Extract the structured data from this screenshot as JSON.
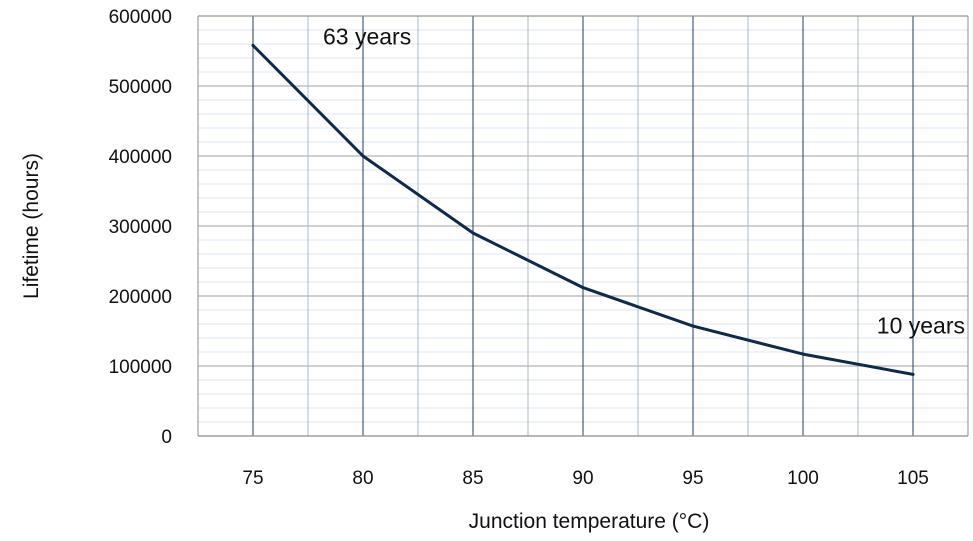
{
  "chart_data": {
    "type": "line",
    "title": "",
    "xlabel": "Junction temperature (°C)",
    "ylabel": "Lifetime  (hours)",
    "x": [
      75,
      80,
      85,
      90,
      95,
      100,
      105
    ],
    "xticks": [
      "75",
      "80",
      "85",
      "90",
      "95",
      "100",
      "105"
    ],
    "xlim": [
      72.5,
      107.5
    ],
    "yticks": [
      "0",
      "100000",
      "200000",
      "300000",
      "400000",
      "500000",
      "600000"
    ],
    "ylim": [
      0,
      600000
    ],
    "series": [
      {
        "values": [
          558000,
          400000,
          290000,
          212000,
          157000,
          117000,
          88000
        ]
      }
    ],
    "annotations": [
      {
        "text": "63 years",
        "x": 75,
        "y": 558000
      },
      {
        "text": "10 years",
        "x": 105,
        "y": 88000
      }
    ],
    "grid": true,
    "legend": "none",
    "colors": {
      "line": "#0d2a4d",
      "major_vgrid": "#1f3f5f",
      "minor_vgrid": "#a8b8cc",
      "major_hgrid": "#b5b5b5",
      "minor_hgrid": "#dde6f3",
      "axis": "#8c8c8c"
    }
  }
}
